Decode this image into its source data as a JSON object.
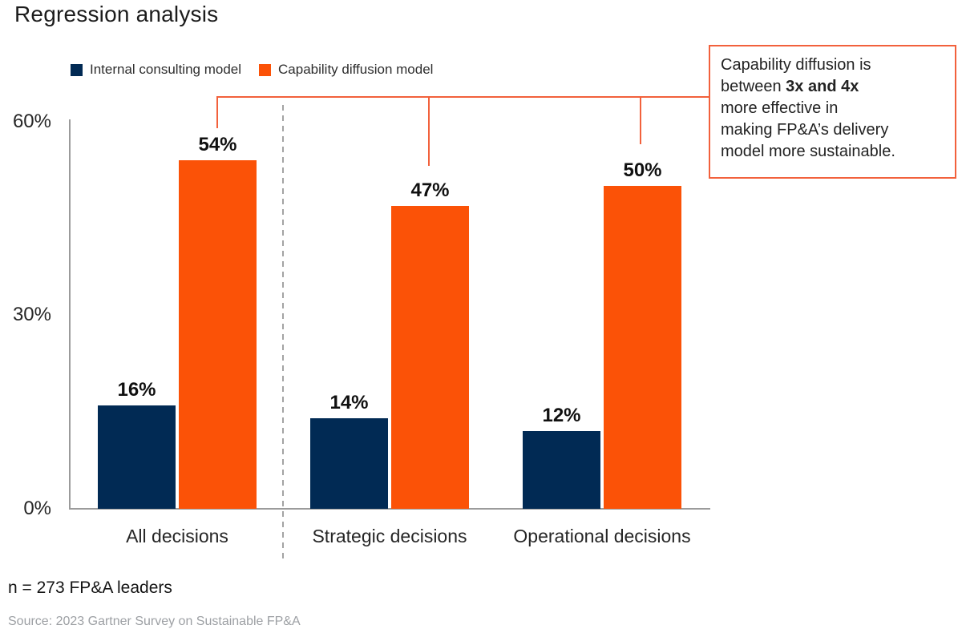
{
  "title": "Regression analysis",
  "colors": {
    "navy": "#012A54",
    "orange": "#FB5207",
    "connector": "#F2613C",
    "axis": "#9b9b9b",
    "divider": "#a3a3a3",
    "text_dark": "#1c1c1c",
    "text_gray": "#9da0a4"
  },
  "y_axis": {
    "ticks": [
      "60%",
      "30%",
      "0%"
    ]
  },
  "chart_data": {
    "type": "bar",
    "title": "Regression analysis",
    "categories": [
      "All decisions",
      "Strategic decisions",
      "Operational decisions"
    ],
    "series": [
      {
        "name": "Internal consulting model",
        "color": "#012A54",
        "values": [
          16,
          14,
          12
        ]
      },
      {
        "name": "Capability diffusion model",
        "color": "#FB5207",
        "values": [
          54,
          47,
          50
        ]
      }
    ],
    "value_label_format": "{v}%",
    "xlabel": "",
    "ylabel": "",
    "ylim": [
      0,
      60
    ],
    "yticks": [
      0,
      30,
      60
    ],
    "grid": false,
    "legend_position": "top-left",
    "annotation": "Capability diffusion is between 3x and 4x more effective in making FP&A’s delivery model more sustainable."
  },
  "callout": {
    "lines": [
      [
        {
          "text": "Capability diffusion is"
        }
      ],
      [
        {
          "text": "between "
        },
        {
          "text": "3x and 4x",
          "bold": true
        }
      ],
      [
        {
          "text": "more effective in"
        }
      ],
      [
        {
          "text": "making FP&A’s delivery"
        }
      ],
      [
        {
          "text": "model more sustainable."
        }
      ]
    ]
  },
  "footnote": "n = 273 FP&A leaders",
  "source": "Source: 2023 Gartner Survey on Sustainable FP&A"
}
